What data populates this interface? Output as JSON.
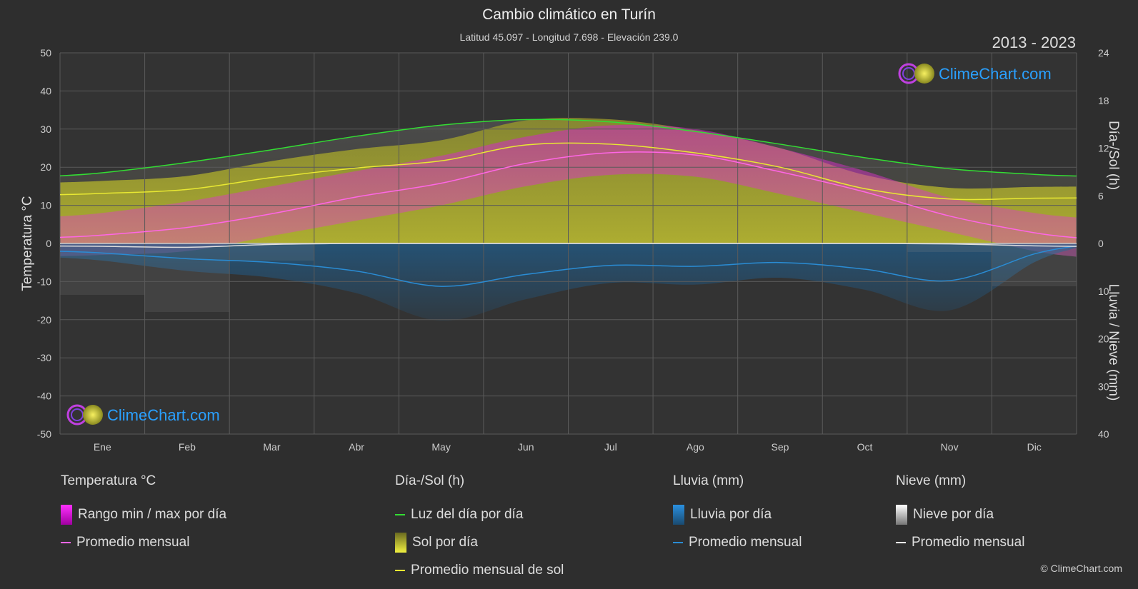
{
  "title": "Cambio climático en Turín",
  "subtitle": "Latitud 45.097 - Longitud 7.698 - Elevación 239.0",
  "years": "2013 - 2023",
  "brand": "ClimeChart.com",
  "copyright": "© ClimeChart.com",
  "colors": {
    "background": "#2e2e2e",
    "temp_avg": "#ff66e6",
    "temp_range": "#e020d0",
    "daylight": "#33dd33",
    "sun": "#e8e832",
    "sun_fill": "#b0b030",
    "rain": "#2a8cd4",
    "snow": "#ffffff"
  },
  "chart_data": {
    "type": "area",
    "categories": [
      "Ene",
      "Feb",
      "Mar",
      "Abr",
      "May",
      "Jun",
      "Jul",
      "Ago",
      "Sep",
      "Oct",
      "Nov",
      "Dic"
    ],
    "left_axis": {
      "label": "Temperatura °C",
      "ylim": [
        -50,
        50
      ],
      "ticks": [
        50,
        40,
        30,
        20,
        10,
        0,
        -10,
        -20,
        -30,
        -40,
        -50
      ]
    },
    "right_axis_top": {
      "label": "Día-/Sol (h)",
      "ticks": [
        24,
        18,
        12,
        6,
        0
      ]
    },
    "right_axis_bottom": {
      "label": "Lluvia / Nieve (mm)",
      "ticks": [
        0,
        10,
        20,
        30,
        40
      ]
    },
    "grid": true,
    "series": [
      {
        "name": "Luz del día por día",
        "axis": "hours",
        "values": [
          8.9,
          10.2,
          11.8,
          13.5,
          14.9,
          15.6,
          15.3,
          14.1,
          12.5,
          10.8,
          9.4,
          8.7
        ]
      },
      {
        "name": "Promedio mensual de sol",
        "axis": "hours",
        "values": [
          6.3,
          6.8,
          8.3,
          9.5,
          10.4,
          12.4,
          12.5,
          11.4,
          9.6,
          6.9,
          5.6,
          5.7
        ]
      },
      {
        "name": "Promedio mensual",
        "group": "Temperatura °C",
        "axis": "temp",
        "values": [
          2.2,
          4.2,
          7.8,
          12.2,
          15.8,
          21.0,
          23.8,
          23.2,
          18.8,
          13.5,
          7.2,
          2.8
        ]
      },
      {
        "name": "Rango min / max por día",
        "axis": "temp",
        "min": [
          -3,
          -2,
          2,
          6,
          10,
          15,
          18,
          17.5,
          13,
          8,
          3,
          -2
        ],
        "max": [
          8,
          11,
          15,
          19,
          23,
          28,
          31,
          30,
          25,
          19,
          12,
          8
        ]
      },
      {
        "name": "Promedio mensual",
        "group": "Lluvia (mm)",
        "axis": "rain_mm",
        "values": [
          2.0,
          3.2,
          4.0,
          5.8,
          9.0,
          6.5,
          4.6,
          4.8,
          4.0,
          5.4,
          7.8,
          2.2
        ]
      },
      {
        "name": "Promedio mensual",
        "group": "Nieve (mm)",
        "axis": "rain_mm",
        "values": [
          0.6,
          0.8,
          0.2,
          0.0,
          0.0,
          0.0,
          0.0,
          0.0,
          0.0,
          0.0,
          0.1,
          0.5
        ]
      }
    ]
  },
  "legend": {
    "temperature": {
      "header": "Temperatura °C",
      "items": [
        "Rango min / max por día",
        "Promedio mensual"
      ]
    },
    "daysun": {
      "header": "Día-/Sol (h)",
      "items": [
        "Luz del día por día",
        "Sol por día",
        "Promedio mensual de sol"
      ]
    },
    "rain": {
      "header": "Lluvia (mm)",
      "items": [
        "Lluvia por día",
        "Promedio mensual"
      ]
    },
    "snow": {
      "header": "Nieve (mm)",
      "items": [
        "Nieve por día",
        "Promedio mensual"
      ]
    }
  }
}
